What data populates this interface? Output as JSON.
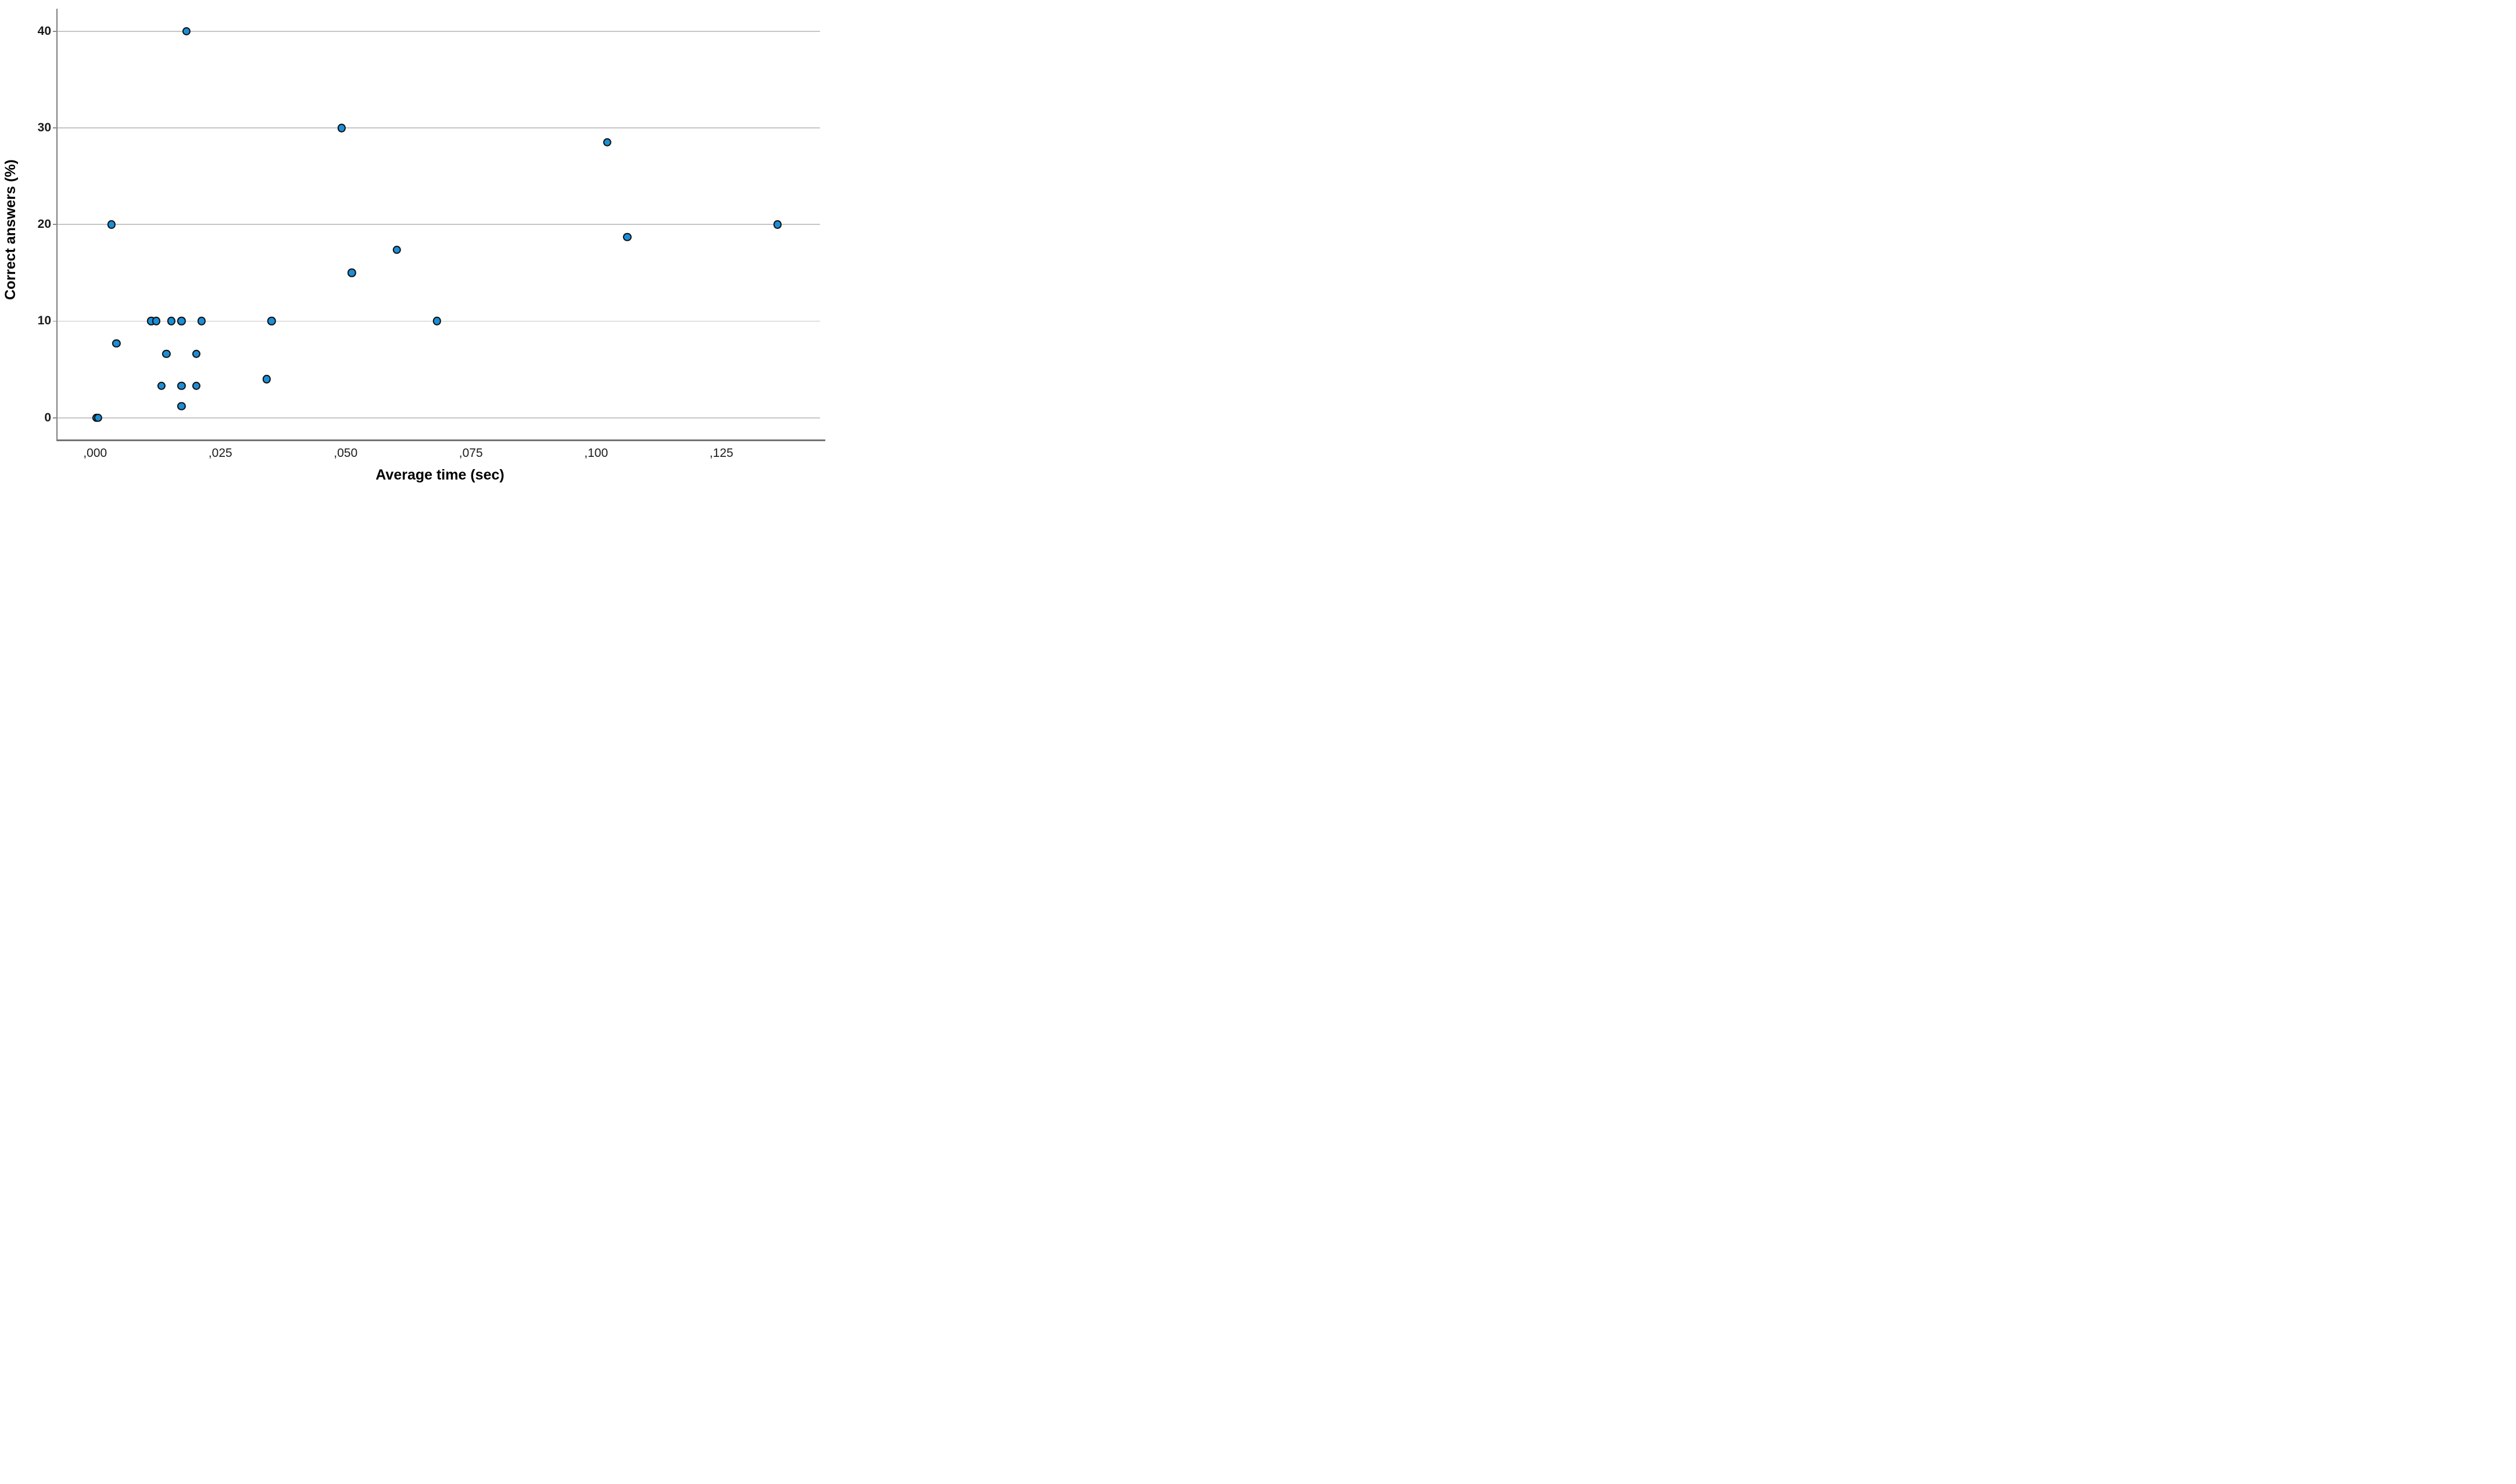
{
  "chart": {
    "x_axis_title": "Average time (sec)",
    "y_axis_title": "Correct answers (%)"
  },
  "chart_data": {
    "type": "scatter",
    "title": "",
    "xlabel": "Average time (sec)",
    "ylabel": "Correct answers (%)",
    "decimal_style": "comma",
    "grid": "horizontal-only",
    "legend": "none",
    "xlim": [
      -0.00773,
      0.1455
    ],
    "ylim": [
      -2.25,
      42.35
    ],
    "x_ticks": [
      {
        "value": 0.0,
        "label": ",000"
      },
      {
        "value": 0.025,
        "label": ",025"
      },
      {
        "value": 0.05,
        "label": ",050"
      },
      {
        "value": 0.075,
        "label": ",075"
      },
      {
        "value": 0.1,
        "label": ",100"
      },
      {
        "value": 0.125,
        "label": ",125"
      }
    ],
    "y_ticks": [
      {
        "value": 0,
        "label": "0"
      },
      {
        "value": 10,
        "label": "10"
      },
      {
        "value": 20,
        "label": "20"
      },
      {
        "value": 30,
        "label": "30"
      },
      {
        "value": 40,
        "label": "40"
      }
    ],
    "marker": {
      "shape": "circle",
      "fill_color": "#1b8ed8",
      "stroke_color": "#111111"
    },
    "points": [
      [
        0.0,
        0
      ],
      [
        0.0004,
        0
      ],
      [
        0.003,
        20
      ],
      [
        0.004,
        7.7
      ],
      [
        0.011,
        10
      ],
      [
        0.012,
        10
      ],
      [
        0.013,
        3.3
      ],
      [
        0.014,
        6.6
      ],
      [
        0.015,
        10
      ],
      [
        0.017,
        10
      ],
      [
        0.017,
        3.3
      ],
      [
        0.017,
        1.2
      ],
      [
        0.018,
        40
      ],
      [
        0.02,
        6.6
      ],
      [
        0.02,
        3.3
      ],
      [
        0.021,
        10
      ],
      [
        0.034,
        4
      ],
      [
        0.035,
        10
      ],
      [
        0.049,
        30
      ],
      [
        0.051,
        15
      ],
      [
        0.06,
        17.4
      ],
      [
        0.068,
        10
      ],
      [
        0.102,
        28.5
      ],
      [
        0.106,
        18.7
      ],
      [
        0.136,
        20
      ]
    ]
  }
}
